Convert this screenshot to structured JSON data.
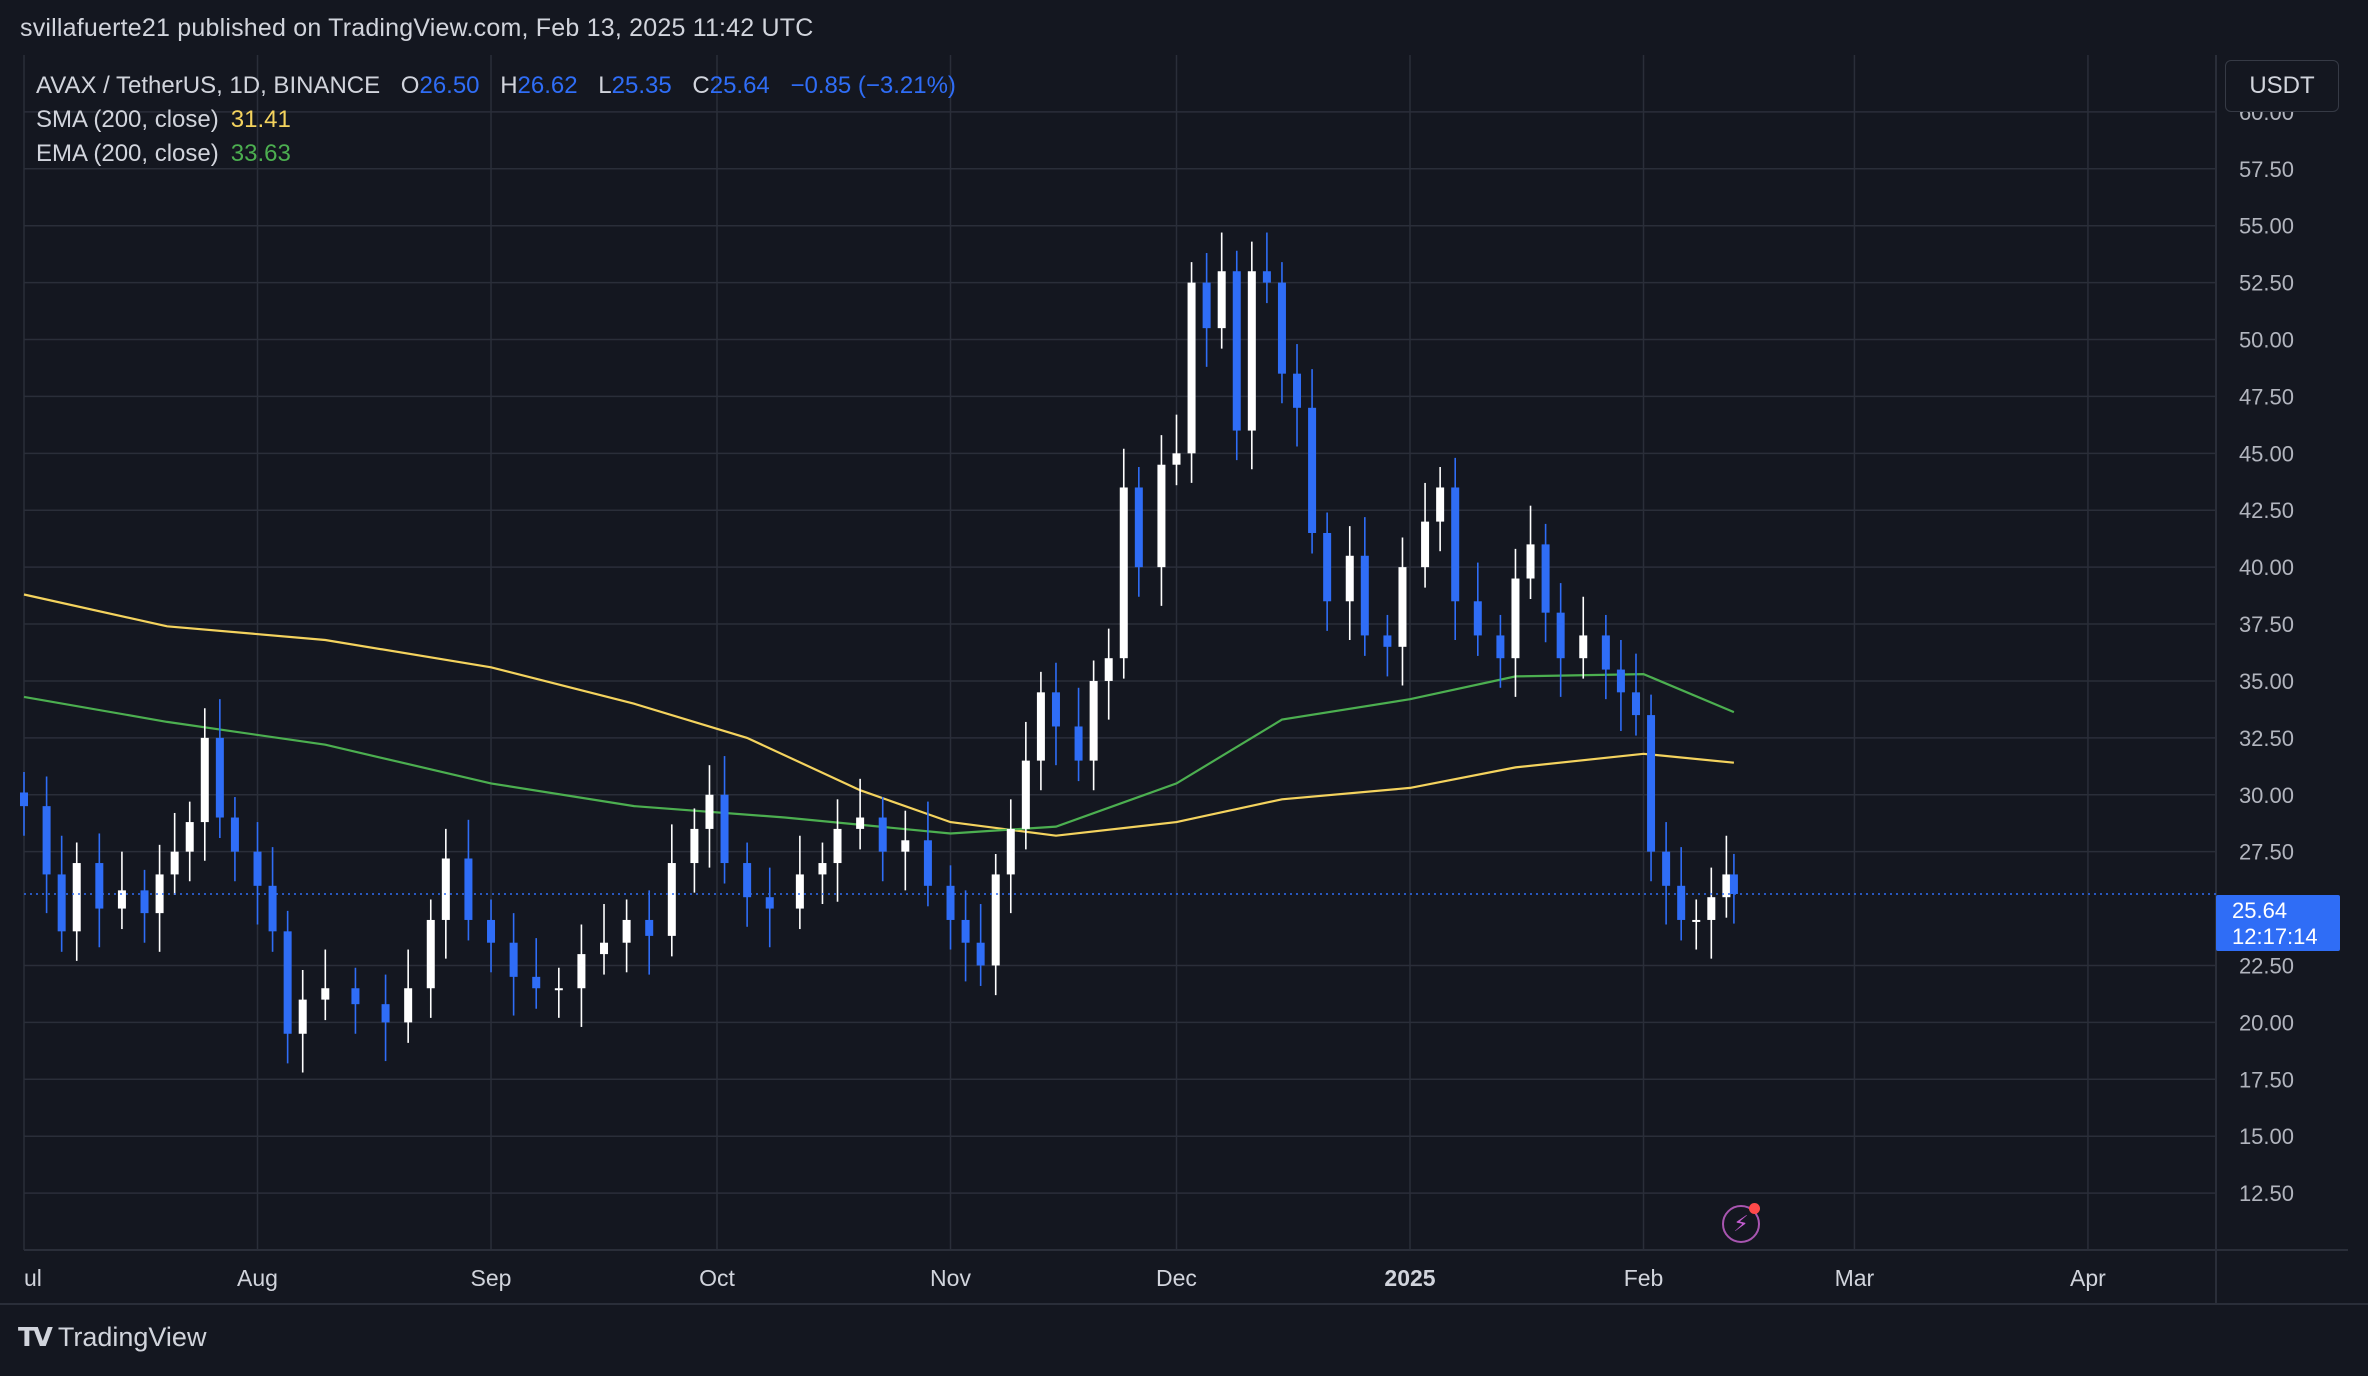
{
  "header": {
    "publisher": "svillafuerte21",
    "published_on": "published on TradingView.com, Feb 13, 2025 11:42 UTC"
  },
  "legend": {
    "symbol": "AVAX / TetherUS, 1D, BINANCE",
    "o_key": "O",
    "o_val": "26.50",
    "h_key": "H",
    "h_val": "26.62",
    "l_key": "L",
    "l_val": "25.35",
    "c_key": "C",
    "c_val": "25.64",
    "change": "−0.85 (−3.21%)",
    "sma_label": "SMA (200, close)",
    "sma_val": "31.41",
    "ema_label": "EMA (200, close)",
    "ema_val": "33.63"
  },
  "price_scale": {
    "currency": "USDT"
  },
  "last_price": {
    "value": "25.64",
    "countdown": "12:17:14"
  },
  "brand": {
    "name": "TradingView",
    "logo_icon": "tradingview-logo-icon"
  },
  "icons": {
    "bolt": "lightning-icon"
  },
  "colors": {
    "bg": "#141720",
    "up": "#ffffff",
    "down": "#2f6df6",
    "sma": "#f4d35e",
    "ema": "#4caf50",
    "grid": "#2a2e39"
  },
  "chart_data": {
    "type": "candlestick",
    "y_range": [
      10,
      62.5
    ],
    "y_ticks": [
      "60.00",
      "57.50",
      "55.00",
      "52.50",
      "50.00",
      "47.50",
      "45.00",
      "42.50",
      "40.00",
      "37.50",
      "35.00",
      "32.50",
      "30.00",
      "27.50",
      "22.50",
      "20.00",
      "17.50",
      "15.00",
      "12.50"
    ],
    "x_start": "2024-07-01",
    "x_end": "2025-04-18",
    "x_ticks": [
      {
        "label": "ul",
        "date": "2024-07-01"
      },
      {
        "label": "Aug",
        "date": "2024-08-01"
      },
      {
        "label": "Sep",
        "date": "2024-09-01"
      },
      {
        "label": "Oct",
        "date": "2024-10-01"
      },
      {
        "label": "Nov",
        "date": "2024-11-01"
      },
      {
        "label": "Dec",
        "date": "2024-12-01"
      },
      {
        "label": "2025",
        "date": "2025-01-01",
        "bold": true
      },
      {
        "label": "Feb",
        "date": "2025-02-01"
      },
      {
        "label": "Mar",
        "date": "2025-03-01"
      },
      {
        "label": "Apr",
        "date": "2025-04-01"
      }
    ],
    "series": [
      {
        "name": "AVAX / TetherUS",
        "ohlc_close": [
          [
            "2024-07-01",
            29.5
          ],
          [
            "2024-07-04",
            26.5
          ],
          [
            "2024-07-06",
            24.0
          ],
          [
            "2024-07-08",
            27.0
          ],
          [
            "2024-07-11",
            25.0
          ],
          [
            "2024-07-14",
            25.8
          ],
          [
            "2024-07-17",
            24.8
          ],
          [
            "2024-07-19",
            26.5
          ],
          [
            "2024-07-21",
            27.5
          ],
          [
            "2024-07-23",
            28.8
          ],
          [
            "2024-07-25",
            32.5
          ],
          [
            "2024-07-27",
            29.0
          ],
          [
            "2024-07-29",
            27.5
          ],
          [
            "2024-08-01",
            26.0
          ],
          [
            "2024-08-03",
            24.0
          ],
          [
            "2024-08-05",
            19.5
          ],
          [
            "2024-08-07",
            21.0
          ],
          [
            "2024-08-10",
            21.5
          ],
          [
            "2024-08-14",
            20.8
          ],
          [
            "2024-08-18",
            20.0
          ],
          [
            "2024-08-21",
            21.5
          ],
          [
            "2024-08-24",
            24.5
          ],
          [
            "2024-08-26",
            27.2
          ],
          [
            "2024-08-29",
            24.5
          ],
          [
            "2024-09-01",
            23.5
          ],
          [
            "2024-09-04",
            22.0
          ],
          [
            "2024-09-07",
            21.5
          ],
          [
            "2024-09-10",
            21.5
          ],
          [
            "2024-09-13",
            23.0
          ],
          [
            "2024-09-16",
            23.5
          ],
          [
            "2024-09-19",
            24.5
          ],
          [
            "2024-09-22",
            23.8
          ],
          [
            "2024-09-25",
            27.0
          ],
          [
            "2024-09-28",
            28.5
          ],
          [
            "2024-09-30",
            30.0
          ],
          [
            "2024-10-02",
            27.0
          ],
          [
            "2024-10-05",
            25.5
          ],
          [
            "2024-10-08",
            25.0
          ],
          [
            "2024-10-12",
            26.5
          ],
          [
            "2024-10-15",
            27.0
          ],
          [
            "2024-10-17",
            28.5
          ],
          [
            "2024-10-20",
            29.0
          ],
          [
            "2024-10-23",
            27.5
          ],
          [
            "2024-10-26",
            28.0
          ],
          [
            "2024-10-29",
            26.0
          ],
          [
            "2024-11-01",
            24.5
          ],
          [
            "2024-11-03",
            23.5
          ],
          [
            "2024-11-05",
            22.5
          ],
          [
            "2024-11-07",
            26.5
          ],
          [
            "2024-11-09",
            28.5
          ],
          [
            "2024-11-11",
            31.5
          ],
          [
            "2024-11-13",
            34.5
          ],
          [
            "2024-11-15",
            33.0
          ],
          [
            "2024-11-18",
            31.5
          ],
          [
            "2024-11-20",
            35.0
          ],
          [
            "2024-11-22",
            36.0
          ],
          [
            "2024-11-24",
            43.5
          ],
          [
            "2024-11-26",
            40.0
          ],
          [
            "2024-11-29",
            44.5
          ],
          [
            "2024-12-01",
            45.0
          ],
          [
            "2024-12-03",
            52.5
          ],
          [
            "2024-12-05",
            50.5
          ],
          [
            "2024-12-07",
            53.0
          ],
          [
            "2024-12-09",
            46.0
          ],
          [
            "2024-12-11",
            53.0
          ],
          [
            "2024-12-13",
            52.5
          ],
          [
            "2024-12-15",
            48.5
          ],
          [
            "2024-12-17",
            47.0
          ],
          [
            "2024-12-19",
            41.5
          ],
          [
            "2024-12-21",
            38.5
          ],
          [
            "2024-12-24",
            40.5
          ],
          [
            "2024-12-26",
            37.0
          ],
          [
            "2024-12-29",
            36.5
          ],
          [
            "2024-12-31",
            40.0
          ],
          [
            "2025-01-03",
            42.0
          ],
          [
            "2025-01-05",
            43.5
          ],
          [
            "2025-01-07",
            38.5
          ],
          [
            "2025-01-10",
            37.0
          ],
          [
            "2025-01-13",
            36.0
          ],
          [
            "2025-01-15",
            39.5
          ],
          [
            "2025-01-17",
            41.0
          ],
          [
            "2025-01-19",
            38.0
          ],
          [
            "2025-01-21",
            36.0
          ],
          [
            "2025-01-24",
            37.0
          ],
          [
            "2025-01-27",
            35.5
          ],
          [
            "2025-01-29",
            34.5
          ],
          [
            "2025-01-31",
            33.5
          ],
          [
            "2025-02-02",
            27.5
          ],
          [
            "2025-02-04",
            26.0
          ],
          [
            "2025-02-06",
            24.5
          ],
          [
            "2025-02-08",
            24.5
          ],
          [
            "2025-02-10",
            25.5
          ],
          [
            "2025-02-12",
            26.5
          ],
          [
            "2025-02-13",
            25.64
          ]
        ]
      },
      {
        "name": "SMA (200, close)",
        "values": [
          [
            "2024-07-01",
            38.8
          ],
          [
            "2024-07-20",
            37.4
          ],
          [
            "2024-08-10",
            36.8
          ],
          [
            "2024-09-01",
            35.6
          ],
          [
            "2024-09-20",
            34.0
          ],
          [
            "2024-10-05",
            32.5
          ],
          [
            "2024-10-20",
            30.2
          ],
          [
            "2024-11-01",
            28.8
          ],
          [
            "2024-11-15",
            28.2
          ],
          [
            "2024-12-01",
            28.8
          ],
          [
            "2024-12-15",
            29.8
          ],
          [
            "2025-01-01",
            30.3
          ],
          [
            "2025-01-15",
            31.2
          ],
          [
            "2025-02-01",
            31.8
          ],
          [
            "2025-02-13",
            31.41
          ]
        ]
      },
      {
        "name": "EMA (200, close)",
        "values": [
          [
            "2024-07-01",
            34.3
          ],
          [
            "2024-07-20",
            33.2
          ],
          [
            "2024-08-10",
            32.2
          ],
          [
            "2024-09-01",
            30.5
          ],
          [
            "2024-09-20",
            29.5
          ],
          [
            "2024-10-10",
            29.0
          ],
          [
            "2024-11-01",
            28.3
          ],
          [
            "2024-11-15",
            28.6
          ],
          [
            "2024-12-01",
            30.5
          ],
          [
            "2024-12-15",
            33.3
          ],
          [
            "2025-01-01",
            34.2
          ],
          [
            "2025-01-15",
            35.2
          ],
          [
            "2025-02-01",
            35.3
          ],
          [
            "2025-02-13",
            33.63
          ]
        ]
      }
    ],
    "grid": true
  }
}
